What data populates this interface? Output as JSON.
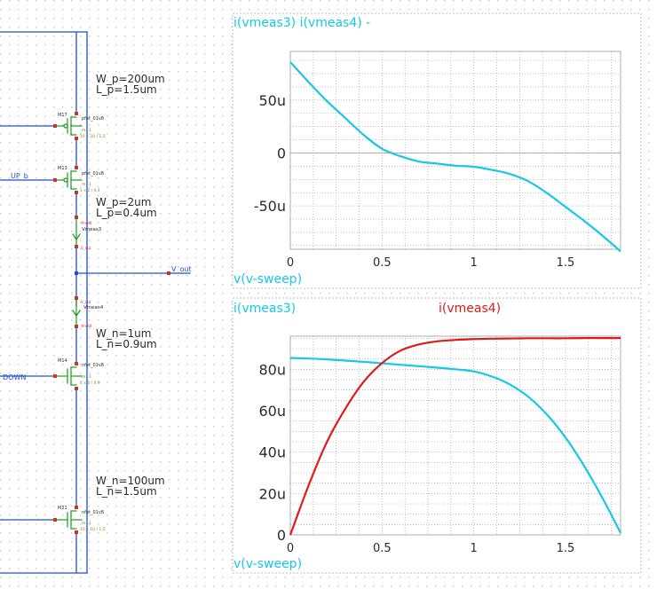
{
  "colors": {
    "background": "#ffffff",
    "dot_grid": "#c9c9c9",
    "wire": "#1f4fd6",
    "component": "#1c9c1c",
    "pin": "#c0392b",
    "label_text": "#2b2b2b",
    "param_text": "#8a8a1a",
    "trace_cyan": "#14c8e6",
    "trace_red": "#e01a1a",
    "plot_grid": "#9a9a9a",
    "plot_border": "#bdbdbd"
  },
  "schematic": {
    "net_labels": {
      "up_b": "UP_b",
      "down": "DOWN",
      "v_out": "V_out"
    },
    "param_notes": {
      "m17_w": "W_p=200um",
      "m17_l": "L_p=1.5um",
      "m13_w": "W_p=2um",
      "m13_l": "L_p=0.4um",
      "m14_w": "W_n=1um",
      "m14_l": "L_n=0.9um",
      "m21_w": "W_n=100um",
      "m21_l": "L_n=1.5um"
    },
    "devices": {
      "m17": {
        "ref": "M17",
        "model": "pfet_01v8",
        "mult": "m=1",
        "size": "10 x 20 / 1.5"
      },
      "m13": {
        "ref": "M13",
        "model": "pfet_01v8",
        "mult": "m=1",
        "size": "1 x 2 / 0.4"
      },
      "m14": {
        "ref": "M14",
        "model": "nfet_01v8",
        "mult": "m=1",
        "size": "1 x 1 / 0.9"
      },
      "m21": {
        "ref": "M21",
        "model": "nfet_01v8",
        "mult": "m=1",
        "size": "10 x 10 / 1.5"
      }
    },
    "vmeas3": {
      "name": "Vmeas3",
      "net_top": "#net6",
      "net_bottom": "V_out"
    },
    "vmeas4": {
      "name": "Vmeas4",
      "net_top": "V_out",
      "net_bottom": "#net8"
    }
  },
  "chart_data": [
    {
      "type": "line",
      "title": "i(vmeas3) i(vmeas4) -",
      "xlabel": "v(v-sweep)",
      "xlim": [
        0,
        1.8
      ],
      "ylim": [
        -9.1e-05,
        9.6e-05
      ],
      "x_ticks": [
        0,
        0.5,
        1,
        1.5
      ],
      "x_tick_labels": [
        "0",
        "0.5",
        "1",
        "1.5"
      ],
      "y_ticks": [
        -5e-05,
        0,
        5e-05
      ],
      "y_tick_labels": [
        "-50u",
        "0",
        "50u"
      ],
      "grid": true,
      "x": [
        0,
        0.1,
        0.2,
        0.3,
        0.4,
        0.5,
        0.6,
        0.7,
        0.8,
        0.9,
        1.0,
        1.1,
        1.2,
        1.3,
        1.4,
        1.5,
        1.6,
        1.7,
        1.8
      ],
      "series": [
        {
          "color": "#14c8e6",
          "values": [
            8.6e-05,
            6.7e-05,
            4.9e-05,
            3.3e-05,
            1.7e-05,
            4e-06,
            -3e-06,
            -8e-06,
            -1e-05,
            -1.2e-05,
            -1.3e-05,
            -1.6e-05,
            -2e-05,
            -2.7e-05,
            -3.8e-05,
            -5.1e-05,
            -6.4e-05,
            -7.8e-05,
            -9.3e-05
          ]
        }
      ]
    },
    {
      "type": "line",
      "legend": [
        "i(vmeas3)",
        "i(vmeas4)"
      ],
      "xlabel": "v(v-sweep)",
      "xlim": [
        0,
        1.8
      ],
      "ylim": [
        0,
        9.6e-05
      ],
      "x_ticks": [
        0,
        0.5,
        1,
        1.5
      ],
      "x_tick_labels": [
        "0",
        "0.5",
        "1",
        "1.5"
      ],
      "y_ticks": [
        0,
        2e-05,
        4e-05,
        6e-05,
        8e-05
      ],
      "y_tick_labels": [
        "0",
        "20u",
        "40u",
        "60u",
        "80u"
      ],
      "grid": true,
      "x": [
        0,
        0.1,
        0.2,
        0.3,
        0.4,
        0.5,
        0.6,
        0.7,
        0.8,
        0.9,
        1.0,
        1.1,
        1.2,
        1.3,
        1.4,
        1.5,
        1.6,
        1.7,
        1.8
      ],
      "series": [
        {
          "name": "i(vmeas3)",
          "color": "#14c8e6",
          "values": [
            8.55e-05,
            8.52e-05,
            8.48e-05,
            8.42e-05,
            8.36e-05,
            8.29e-05,
            8.22e-05,
            8.15e-05,
            8.08e-05,
            8e-05,
            7.9e-05,
            7.65e-05,
            7.25e-05,
            6.65e-05,
            5.8e-05,
            4.7e-05,
            3.35e-05,
            1.8e-05,
            1e-06
          ]
        },
        {
          "name": "i(vmeas4)",
          "color": "#e01a1a",
          "values": [
            0,
            2.4e-05,
            4.5e-05,
            6.1e-05,
            7.4e-05,
            8.3e-05,
            8.9e-05,
            9.2e-05,
            9.35e-05,
            9.42e-05,
            9.46e-05,
            9.48e-05,
            9.49e-05,
            9.5e-05,
            9.5e-05,
            9.5e-05,
            9.51e-05,
            9.51e-05,
            9.51e-05
          ]
        }
      ]
    }
  ]
}
